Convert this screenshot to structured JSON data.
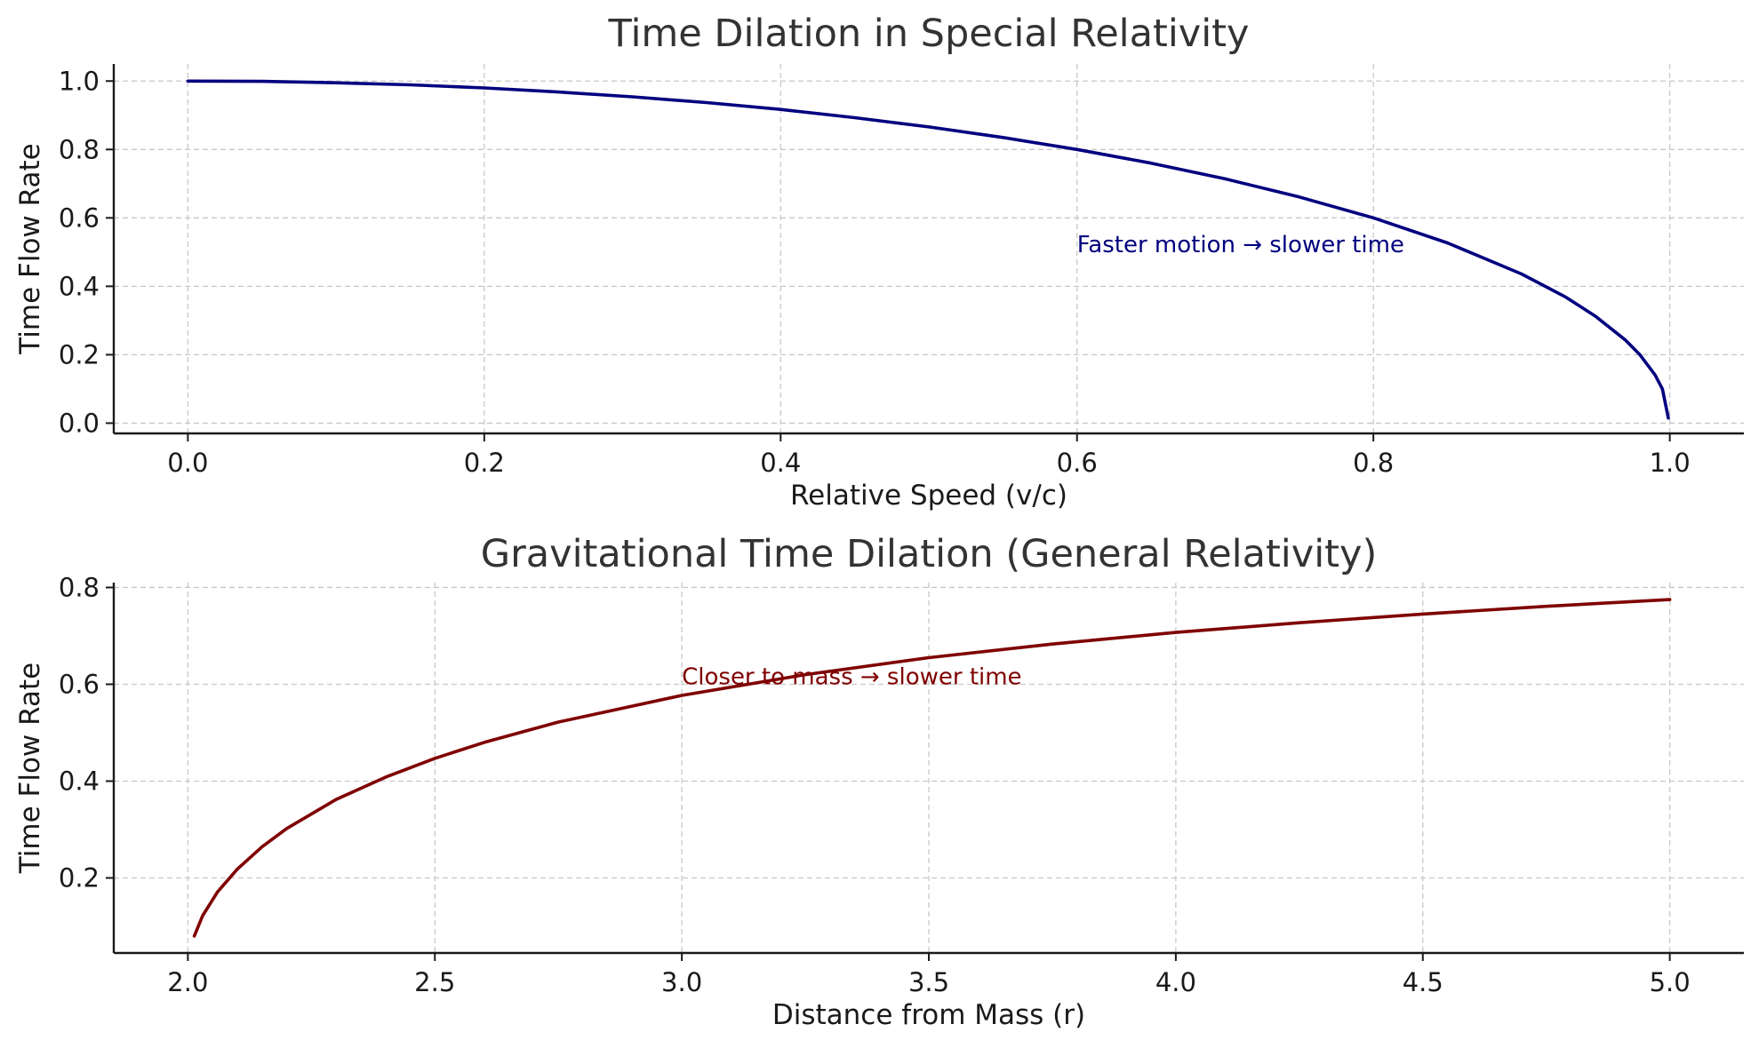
{
  "chart_data": [
    {
      "type": "line",
      "title": "Time Dilation in Special Relativity",
      "xlabel": "Relative Speed (v/c)",
      "ylabel": "Time Flow Rate",
      "xlim": [
        -0.05,
        1.05
      ],
      "ylim": [
        -0.03,
        1.05
      ],
      "grid": true,
      "xticks": [
        0.0,
        0.2,
        0.4,
        0.6,
        0.8,
        1.0
      ],
      "xtick_labels": [
        "0.0",
        "0.2",
        "0.4",
        "0.6",
        "0.8",
        "1.0"
      ],
      "yticks": [
        0.0,
        0.2,
        0.4,
        0.6,
        0.8,
        1.0
      ],
      "ytick_labels": [
        "0.0",
        "0.2",
        "0.4",
        "0.6",
        "0.8",
        "1.0"
      ],
      "series": [
        {
          "color": "#00007f",
          "x": [
            0.0,
            0.05,
            0.1,
            0.15,
            0.2,
            0.25,
            0.3,
            0.35,
            0.4,
            0.45,
            0.5,
            0.55,
            0.6,
            0.65,
            0.7,
            0.75,
            0.8,
            0.85,
            0.9,
            0.93,
            0.95,
            0.97,
            0.98,
            0.99,
            0.995,
            0.999
          ],
          "values": [
            1.0,
            0.999,
            0.995,
            0.989,
            0.98,
            0.968,
            0.954,
            0.937,
            0.917,
            0.893,
            0.866,
            0.835,
            0.8,
            0.76,
            0.714,
            0.661,
            0.6,
            0.527,
            0.436,
            0.368,
            0.312,
            0.243,
            0.199,
            0.141,
            0.1,
            0.015
          ]
        }
      ],
      "annotations": [
        {
          "text": "Faster motion → slower time",
          "x": 0.6,
          "y": 0.5,
          "color": "#00007f"
        }
      ]
    },
    {
      "type": "line",
      "title": "Gravitational Time Dilation (General Relativity)",
      "xlabel": "Distance from Mass (r)",
      "ylabel": "Time Flow Rate",
      "xlim": [
        1.85,
        5.15
      ],
      "ylim": [
        0.045,
        0.81
      ],
      "grid": true,
      "xticks": [
        2.0,
        2.5,
        3.0,
        3.5,
        4.0,
        4.5,
        5.0
      ],
      "xtick_labels": [
        "2.0",
        "2.5",
        "3.0",
        "3.5",
        "4.0",
        "4.5",
        "5.0"
      ],
      "yticks": [
        0.2,
        0.4,
        0.6,
        0.8
      ],
      "ytick_labels": [
        "0.2",
        "0.4",
        "0.6",
        "0.8"
      ],
      "series": [
        {
          "color": "#7f0000",
          "x": [
            2.013,
            2.03,
            2.06,
            2.1,
            2.15,
            2.2,
            2.3,
            2.4,
            2.5,
            2.6,
            2.75,
            3.0,
            3.25,
            3.5,
            3.75,
            4.0,
            4.25,
            4.5,
            4.75,
            5.0
          ],
          "values": [
            0.08,
            0.122,
            0.171,
            0.218,
            0.264,
            0.302,
            0.362,
            0.408,
            0.447,
            0.48,
            0.522,
            0.577,
            0.62,
            0.655,
            0.683,
            0.707,
            0.727,
            0.745,
            0.761,
            0.775
          ]
        }
      ],
      "annotations": [
        {
          "text": "Closer to mass → slower time",
          "x": 3.0,
          "y": 0.6,
          "color": "#7f0000"
        }
      ]
    }
  ]
}
